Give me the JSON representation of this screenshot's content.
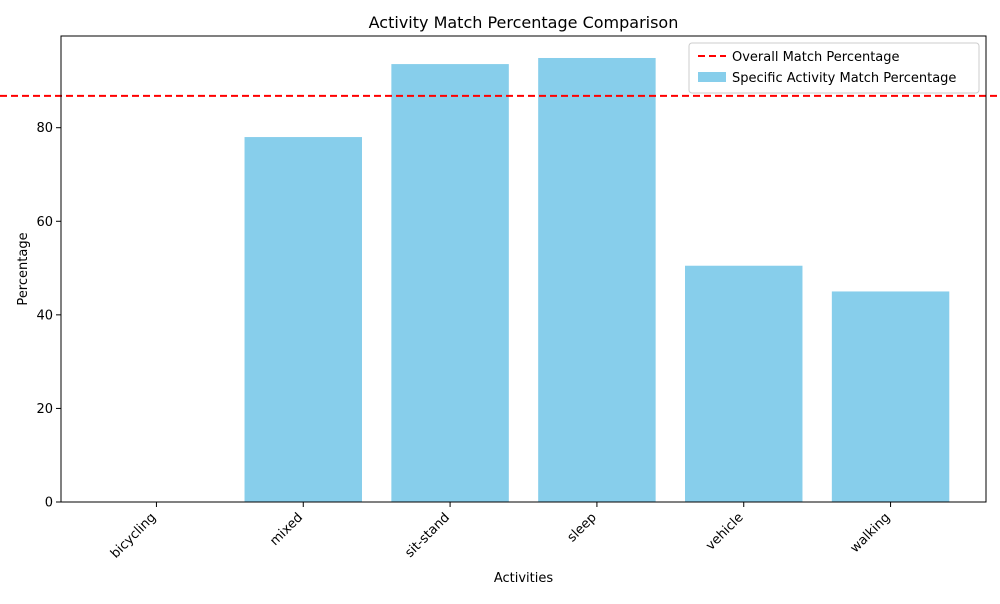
{
  "chart_data": {
    "type": "bar",
    "title": "Activity Match Percentage Comparison",
    "xlabel": "Activities",
    "ylabel": "Percentage",
    "categories": [
      "bicycling",
      "mixed",
      "sit-stand",
      "sleep",
      "vehicle",
      "walking"
    ],
    "values": [
      0,
      78.0,
      93.6,
      94.9,
      50.5,
      45.0
    ],
    "ylim": [
      0,
      99.6
    ],
    "yticks": [
      "0",
      "20",
      "40",
      "60",
      "80"
    ],
    "reference_line": {
      "value": 86.8
    },
    "legend": {
      "placement": "top-right",
      "entries": [
        "Overall Match Percentage",
        "Specific Activity Match Percentage"
      ]
    },
    "colors": {
      "bar": "#87ceeb",
      "reference_line": "#ff0000"
    },
    "grid": false
  }
}
